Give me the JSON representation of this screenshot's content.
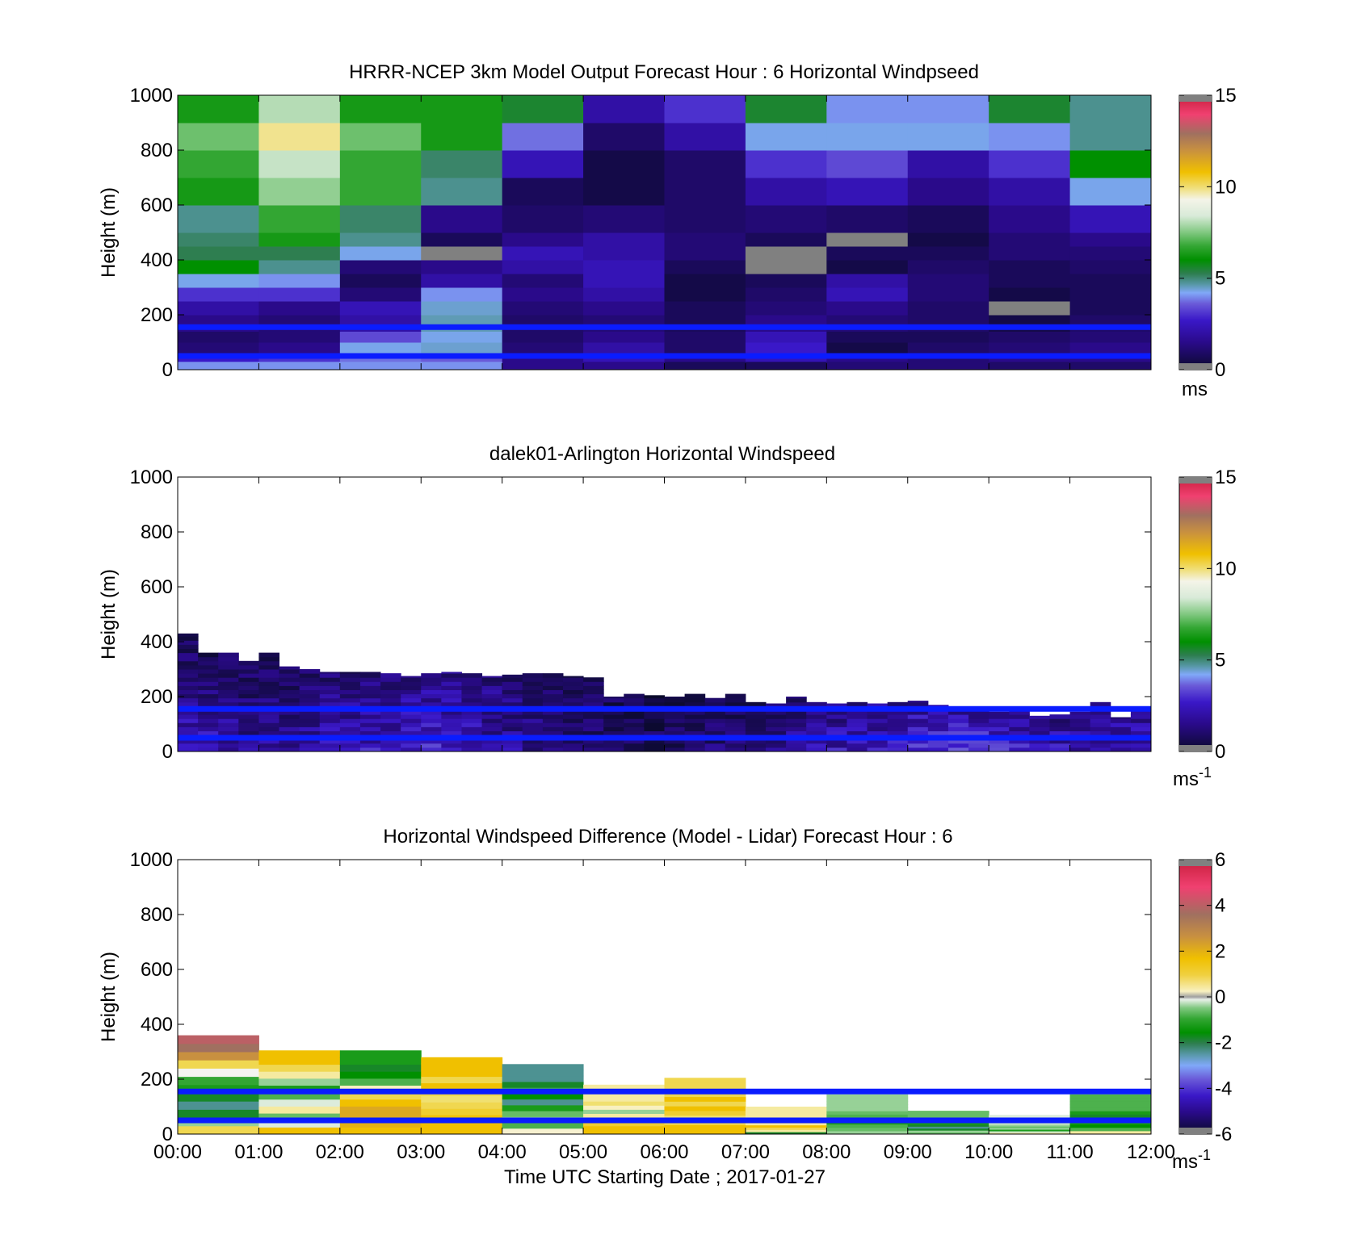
{
  "figure": {
    "xlabel": "Time UTC  Starting Date ; 2017-01-27",
    "xticks": [
      "00:00",
      "01:00",
      "02:00",
      "03:00",
      "04:00",
      "05:00",
      "06:00",
      "07:00",
      "08:00",
      "09:00",
      "10:00",
      "11:00",
      "12:00"
    ]
  },
  "chart_data": [
    {
      "type": "heatmap",
      "title": "HRRR-NCEP 3km Model Output   Forecast Hour : 6 Horizontal Windpseed",
      "ylabel": "Height (m)",
      "xlim": [
        0,
        12
      ],
      "ylim": [
        0,
        1000
      ],
      "yticks": [
        "0",
        "200",
        "400",
        "600",
        "800",
        "1000"
      ],
      "colorbar": {
        "min": 0,
        "max": 15,
        "ticks": [
          "0",
          "5",
          "10",
          "15"
        ],
        "unit_text": "ms",
        "unit_sup": ""
      },
      "reference_lines_m": [
        50,
        155
      ],
      "hours": [
        0,
        1,
        2,
        3,
        4,
        5,
        6,
        7,
        8,
        9,
        10,
        11
      ],
      "levels": [
        {
          "bottom": 0,
          "top": 30
        },
        {
          "bottom": 30,
          "top": 60
        },
        {
          "bottom": 60,
          "top": 100
        },
        {
          "bottom": 100,
          "top": 140
        },
        {
          "bottom": 140,
          "top": 200
        },
        {
          "bottom": 200,
          "top": 250
        },
        {
          "bottom": 250,
          "top": 300
        },
        {
          "bottom": 300,
          "top": 350
        },
        {
          "bottom": 350,
          "top": 400
        },
        {
          "bottom": 400,
          "top": 450
        },
        {
          "bottom": 450,
          "top": 500
        },
        {
          "bottom": 500,
          "top": 600
        },
        {
          "bottom": 600,
          "top": 700
        },
        {
          "bottom": 700,
          "top": 800
        },
        {
          "bottom": 800,
          "top": 900
        },
        {
          "bottom": 900,
          "top": 1000
        }
      ],
      "windspeed_ms": [
        [
          3.5,
          3.5,
          3.5,
          3.5,
          1.5,
          1.5,
          0.8,
          0.8,
          1.2,
          1.2,
          1.0,
          1.0
        ],
        [
          2.2,
          2.5,
          3.2,
          3.0,
          1.5,
          2.0,
          1.5,
          2.0,
          1.5,
          1.2,
          1.5,
          1.5
        ],
        [
          1.2,
          1.5,
          3.8,
          4.0,
          1.2,
          1.8,
          1.0,
          2.2,
          0.5,
          1.0,
          1.2,
          1.5
        ],
        [
          1.0,
          1.2,
          2.8,
          3.8,
          1.0,
          1.5,
          1.0,
          2.0,
          0.8,
          0.8,
          1.0,
          1.2
        ],
        [
          1.5,
          1.2,
          1.8,
          4.2,
          1.0,
          1.2,
          0.8,
          1.5,
          1.2,
          1.0,
          0.5,
          1.0
        ],
        [
          1.8,
          1.5,
          2.0,
          4.0,
          1.2,
          1.5,
          0.8,
          1.2,
          1.5,
          1.0,
          15.0,
          0.8
        ],
        [
          2.5,
          2.5,
          1.2,
          3.5,
          1.5,
          1.8,
          0.5,
          1.0,
          2.0,
          1.2,
          0.5,
          0.8
        ],
        [
          3.8,
          3.5,
          0.8,
          1.8,
          1.2,
          2.0,
          0.5,
          0.8,
          1.8,
          1.2,
          0.8,
          0.8
        ],
        [
          5.5,
          4.5,
          1.2,
          1.5,
          1.8,
          2.0,
          0.8,
          15.0,
          0.5,
          1.0,
          0.8,
          1.0
        ],
        [
          5.0,
          5.0,
          3.8,
          15.0,
          2.0,
          1.8,
          1.2,
          15.0,
          0.8,
          0.8,
          1.2,
          1.2
        ],
        [
          4.8,
          5.8,
          4.5,
          0.8,
          1.5,
          1.8,
          1.2,
          0.8,
          15.0,
          0.5,
          1.2,
          1.5
        ],
        [
          4.5,
          6.2,
          4.8,
          1.5,
          1.0,
          1.2,
          1.0,
          1.2,
          1.0,
          0.8,
          1.5,
          2.0
        ],
        [
          5.8,
          7.2,
          6.2,
          4.5,
          0.8,
          0.5,
          1.0,
          1.8,
          2.0,
          1.5,
          1.8,
          3.8
        ],
        [
          6.2,
          7.8,
          6.2,
          4.8,
          2.0,
          0.5,
          1.0,
          2.5,
          2.8,
          1.8,
          2.5,
          5.5
        ],
        [
          6.8,
          9.2,
          6.8,
          5.8,
          3.2,
          1.0,
          1.8,
          3.8,
          3.8,
          3.8,
          3.5,
          4.5
        ],
        [
          5.8,
          7.6,
          5.8,
          5.8,
          5.2,
          1.8,
          2.5,
          5.2,
          3.5,
          3.5,
          5.2,
          4.5
        ]
      ]
    },
    {
      "type": "heatmap",
      "title": "dalek01-Arlington  Horizontal Windspeed",
      "ylabel": "Height (m)",
      "xlim": [
        0,
        12
      ],
      "ylim": [
        0,
        1000
      ],
      "yticks": [
        "0",
        "200",
        "400",
        "600",
        "800",
        "1000"
      ],
      "colorbar": {
        "min": 0,
        "max": 15,
        "ticks": [
          "0",
          "5",
          "10",
          "15"
        ],
        "unit_text": "ms",
        "unit_sup": "-1"
      },
      "reference_lines_m": [
        50,
        155
      ],
      "time_step_h": 0.25,
      "data_top_m": [
        430,
        360,
        360,
        330,
        360,
        310,
        300,
        290,
        290,
        290,
        285,
        275,
        285,
        290,
        285,
        275,
        280,
        285,
        285,
        275,
        270,
        200,
        210,
        205,
        200,
        210,
        195,
        210,
        180,
        175,
        200,
        180,
        175,
        180,
        175,
        180,
        185,
        170,
        160,
        155,
        145,
        150,
        130,
        135,
        145,
        180,
        125,
        150
      ],
      "speed_at_surface_ms": [
        2.2,
        2.0,
        1.8,
        1.6,
        1.8,
        1.7,
        1.8,
        1.9,
        2.0,
        2.1,
        2.2,
        2.4,
        2.3,
        2.2,
        2.0,
        1.8,
        1.6,
        1.4,
        1.2,
        1.1,
        1.0,
        0.9,
        0.8,
        0.8,
        0.9,
        1.0,
        1.2,
        1.3,
        1.4,
        1.6,
        1.8,
        1.9,
        2.0,
        2.1,
        2.2,
        2.3,
        2.4,
        2.6,
        2.8,
        3.0,
        2.6,
        2.4,
        2.2,
        2.0,
        2.0,
        2.0,
        1.9,
        1.8
      ],
      "speed_at_top_ms": [
        0.6,
        0.6,
        0.7,
        0.7,
        0.8,
        0.8,
        0.9,
        1.0,
        1.0,
        1.1,
        1.2,
        1.2,
        1.3,
        1.3,
        1.2,
        1.2,
        1.1,
        1.0,
        0.9,
        0.9,
        0.8,
        0.7,
        0.6,
        0.5,
        0.5,
        0.5,
        0.6,
        0.6,
        0.7,
        0.8,
        0.9,
        1.0,
        1.2,
        1.3,
        1.4,
        1.5,
        1.5,
        1.5,
        1.4,
        1.3,
        1.2,
        1.2,
        1.2,
        1.3,
        1.4,
        1.5,
        1.5,
        1.5
      ]
    },
    {
      "type": "heatmap",
      "title": "Horizontal Windspeed Difference (Model - Lidar) Forecast Hour : 6",
      "ylabel": "Height (m)",
      "xlim": [
        0,
        12
      ],
      "ylim": [
        0,
        1000
      ],
      "yticks": [
        "0",
        "200",
        "400",
        "600",
        "800",
        "1000"
      ],
      "colorbar": {
        "min": -6,
        "max": 6,
        "ticks": [
          "-6",
          "-4",
          "-2",
          "0",
          "2",
          "4",
          "6"
        ],
        "unit_text": "ms",
        "unit_sup": "-1"
      },
      "reference_lines_m": [
        50,
        155
      ],
      "hours": [
        0,
        1,
        2,
        3,
        4,
        5,
        6,
        7,
        8,
        9,
        10,
        11
      ],
      "column_top_m": [
        360,
        305,
        305,
        280,
        255,
        180,
        205,
        100,
        145,
        85,
        70,
        145
      ],
      "difference_ms": [
        [
          1.0,
          1.5,
          1.5,
          1.5,
          0.2,
          1.5,
          1.5,
          -2.0,
          -0.5,
          -0.8,
          0.5,
          0.5
        ],
        [
          -0.5,
          -0.2,
          1.8,
          1.5,
          -1.0,
          1.5,
          1.5,
          0.5,
          -0.8,
          -0.5,
          -0.3,
          -1.0
        ],
        [
          -2.0,
          -0.8,
          2.0,
          1.5,
          -0.5,
          1.2,
          1.0,
          1.0,
          -1.0,
          -2.0,
          -1.5,
          -1.8
        ],
        [
          -2.5,
          0.5,
          2.0,
          1.2,
          -0.8,
          1.0,
          0.8,
          1.5,
          -1.5,
          -2.5,
          -0.5,
          -1.5
        ],
        [
          -2.0,
          -0.2,
          1.5,
          1.0,
          -1.5,
          0.5,
          1.2,
          0.5,
          -1.8,
          -2.0,
          -0.8,
          -1.2
        ],
        [
          -1.5,
          -1.0,
          1.0,
          0.8,
          -2.5,
          -0.5,
          1.5,
          0.5,
          -1.0,
          -1.5,
          -0.5,
          -2.0
        ],
        [
          -1.2,
          -1.5,
          0.3,
          1.0,
          -1.8,
          0.3,
          1.0,
          0.2,
          -0.8,
          -1.0,
          -0.3,
          -1.5
        ],
        [
          0.0,
          -0.5,
          -1.0,
          1.5,
          -1.0,
          0.8,
          1.5,
          0.5,
          -0.5,
          -0.8,
          -0.2,
          -1.0
        ],
        [
          1.0,
          0.5,
          -1.8,
          1.0,
          -2.0,
          0.5,
          1.0,
          0.5,
          -0.5,
          -0.8,
          -0.2,
          -1.0
        ],
        [
          2.5,
          1.0,
          -2.0,
          1.5,
          -2.5,
          0.5,
          1.0,
          0.5,
          -0.5,
          -0.8,
          -0.2,
          -1.0
        ],
        [
          3.5,
          1.5,
          -1.5,
          1.5,
          -2.5,
          0.5,
          1.0,
          0.5,
          -0.5,
          -0.8,
          -0.2,
          -1.0
        ],
        [
          4.0,
          1.5,
          -1.5,
          1.5,
          -2.5,
          0.5,
          1.0,
          0.5,
          -0.5,
          -0.8,
          -0.2,
          -1.0
        ]
      ]
    }
  ]
}
